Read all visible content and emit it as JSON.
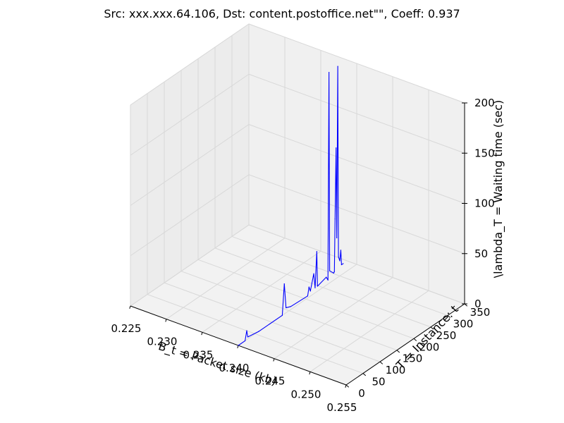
{
  "chart_data": {
    "type": "line3d",
    "title": "Src: xxx.xxx.64.106, Dst: content.postoffice.net\"\", Coeff: 0.937",
    "xlabel": "B_t = Packet size (kb)",
    "ylabel": "T = Instance: t",
    "zlabel": "\\lambda_T = Waiting time (sec)",
    "xlim": [
      0.225,
      0.255
    ],
    "ylim": [
      0,
      350
    ],
    "zlim": [
      0,
      200
    ],
    "x_ticks": [
      "0.225",
      "0.230",
      "0.235",
      "0.240",
      "0.245",
      "0.250",
      "0.255"
    ],
    "y_ticks": [
      "0",
      "50",
      "100",
      "150",
      "200",
      "250",
      "300",
      "350"
    ],
    "z_ticks": [
      "0",
      "50",
      "100",
      "150",
      "200"
    ],
    "series": [
      {
        "name": "waiting time",
        "color": "#0000ff",
        "points": [
          {
            "x": 0.24,
            "y": 0,
            "z": 0
          },
          {
            "x": 0.24,
            "y": 20,
            "z": 0
          },
          {
            "x": 0.24,
            "y": 25,
            "z": 9
          },
          {
            "x": 0.24,
            "y": 28,
            "z": 2
          },
          {
            "x": 0.24,
            "y": 60,
            "z": 0
          },
          {
            "x": 0.24,
            "y": 130,
            "z": 0
          },
          {
            "x": 0.24,
            "y": 136,
            "z": 30
          },
          {
            "x": 0.24,
            "y": 141,
            "z": 5
          },
          {
            "x": 0.24,
            "y": 155,
            "z": 3
          },
          {
            "x": 0.24,
            "y": 205,
            "z": 2
          },
          {
            "x": 0.24,
            "y": 209,
            "z": 10
          },
          {
            "x": 0.24,
            "y": 213,
            "z": 5
          },
          {
            "x": 0.24,
            "y": 223,
            "z": 20
          },
          {
            "x": 0.24,
            "y": 227,
            "z": 5
          },
          {
            "x": 0.24,
            "y": 232,
            "z": 40
          },
          {
            "x": 0.24,
            "y": 234,
            "z": 5
          },
          {
            "x": 0.24,
            "y": 260,
            "z": 8
          },
          {
            "x": 0.24,
            "y": 265,
            "z": 4
          },
          {
            "x": 0.24,
            "y": 268,
            "z": 210
          },
          {
            "x": 0.24,
            "y": 270,
            "z": 12
          },
          {
            "x": 0.24,
            "y": 282,
            "z": 7
          },
          {
            "x": 0.24,
            "y": 284,
            "z": 8
          },
          {
            "x": 0.24,
            "y": 286,
            "z": 60
          },
          {
            "x": 0.24,
            "y": 289,
            "z": 130
          },
          {
            "x": 0.24,
            "y": 291,
            "z": 40
          },
          {
            "x": 0.24,
            "y": 294,
            "z": 210
          },
          {
            "x": 0.24,
            "y": 296,
            "z": 20
          },
          {
            "x": 0.24,
            "y": 300,
            "z": 15
          },
          {
            "x": 0.24,
            "y": 303,
            "z": 25
          },
          {
            "x": 0.24,
            "y": 305,
            "z": 10
          },
          {
            "x": 0.24,
            "y": 310,
            "z": 10
          }
        ]
      }
    ],
    "grid": true,
    "pane_color": "#eeeeee"
  }
}
